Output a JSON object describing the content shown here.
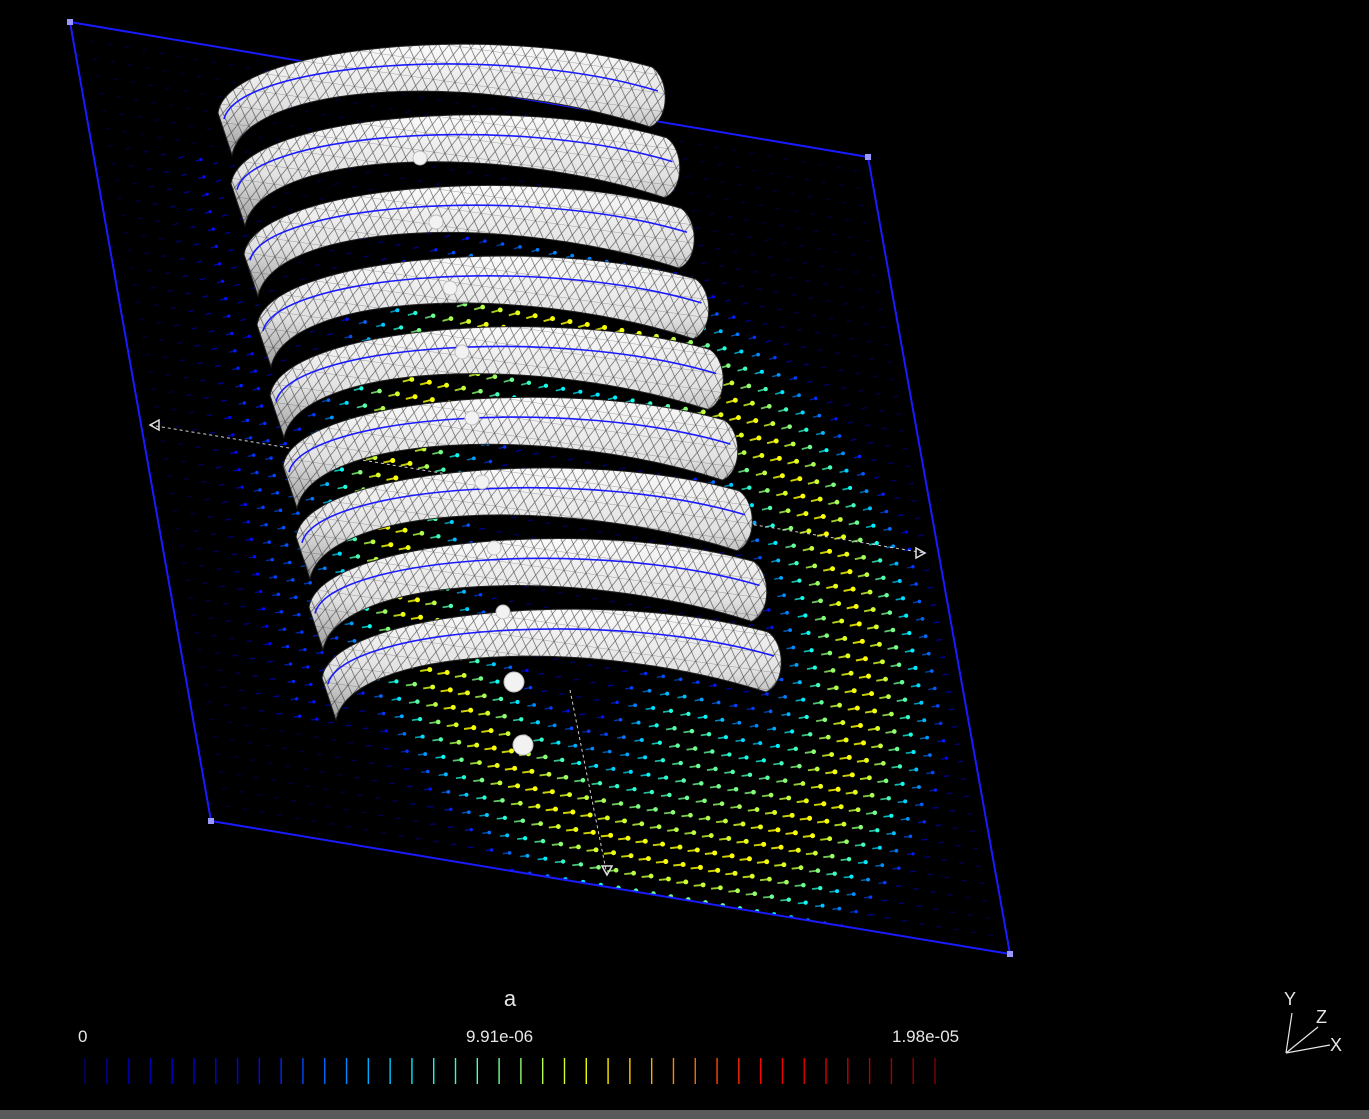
{
  "viewer": {
    "background_color": "#000000",
    "clip_plane_color": "#1a1aff",
    "coil_fill_color": "#e4e4e4",
    "coil_edge_color": "#111111",
    "coil_centerline_color": "#1a1aff"
  },
  "coil": {
    "turns": 9
  },
  "color_legend": {
    "title": "a",
    "min_label": "0",
    "mid_label": "9.91e-06",
    "max_label": "1.98e-05",
    "segments": 40,
    "colormap": [
      "#00007f",
      "#0000ff",
      "#00ffff",
      "#ffff00",
      "#ff0000",
      "#7f0000"
    ]
  },
  "axes_triad": {
    "x_label": "X",
    "y_label": "Y",
    "z_label": "Z"
  }
}
